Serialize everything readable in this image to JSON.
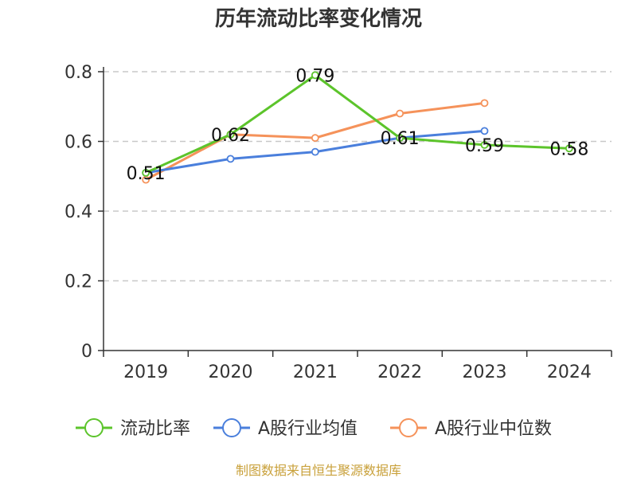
{
  "chart_data": {
    "type": "line",
    "title": "历年流动比率变化情况",
    "categories": [
      "2019",
      "2020",
      "2021",
      "2022",
      "2023",
      "2024"
    ],
    "ylim": [
      0,
      0.8
    ],
    "yticks": [
      "0",
      "0.2",
      "0.4",
      "0.6",
      "0.8"
    ],
    "grid": true,
    "legend_position": "bottom",
    "series": [
      {
        "name": "流动比率",
        "color": "#5cc42b",
        "values": [
          0.51,
          0.62,
          0.79,
          0.61,
          0.59,
          0.58
        ],
        "labels": [
          "0.51",
          "0.62",
          "0.79",
          "0.61",
          "0.59",
          "0.58"
        ]
      },
      {
        "name": "A股行业均值",
        "color": "#4a7fdc",
        "values": [
          0.51,
          0.55,
          0.57,
          0.61,
          0.63,
          null
        ]
      },
      {
        "name": "A股行业中位数",
        "color": "#f5925a",
        "values": [
          0.49,
          0.62,
          0.61,
          0.68,
          0.71,
          null
        ]
      }
    ]
  },
  "source": "制图数据来自恒生聚源数据库"
}
